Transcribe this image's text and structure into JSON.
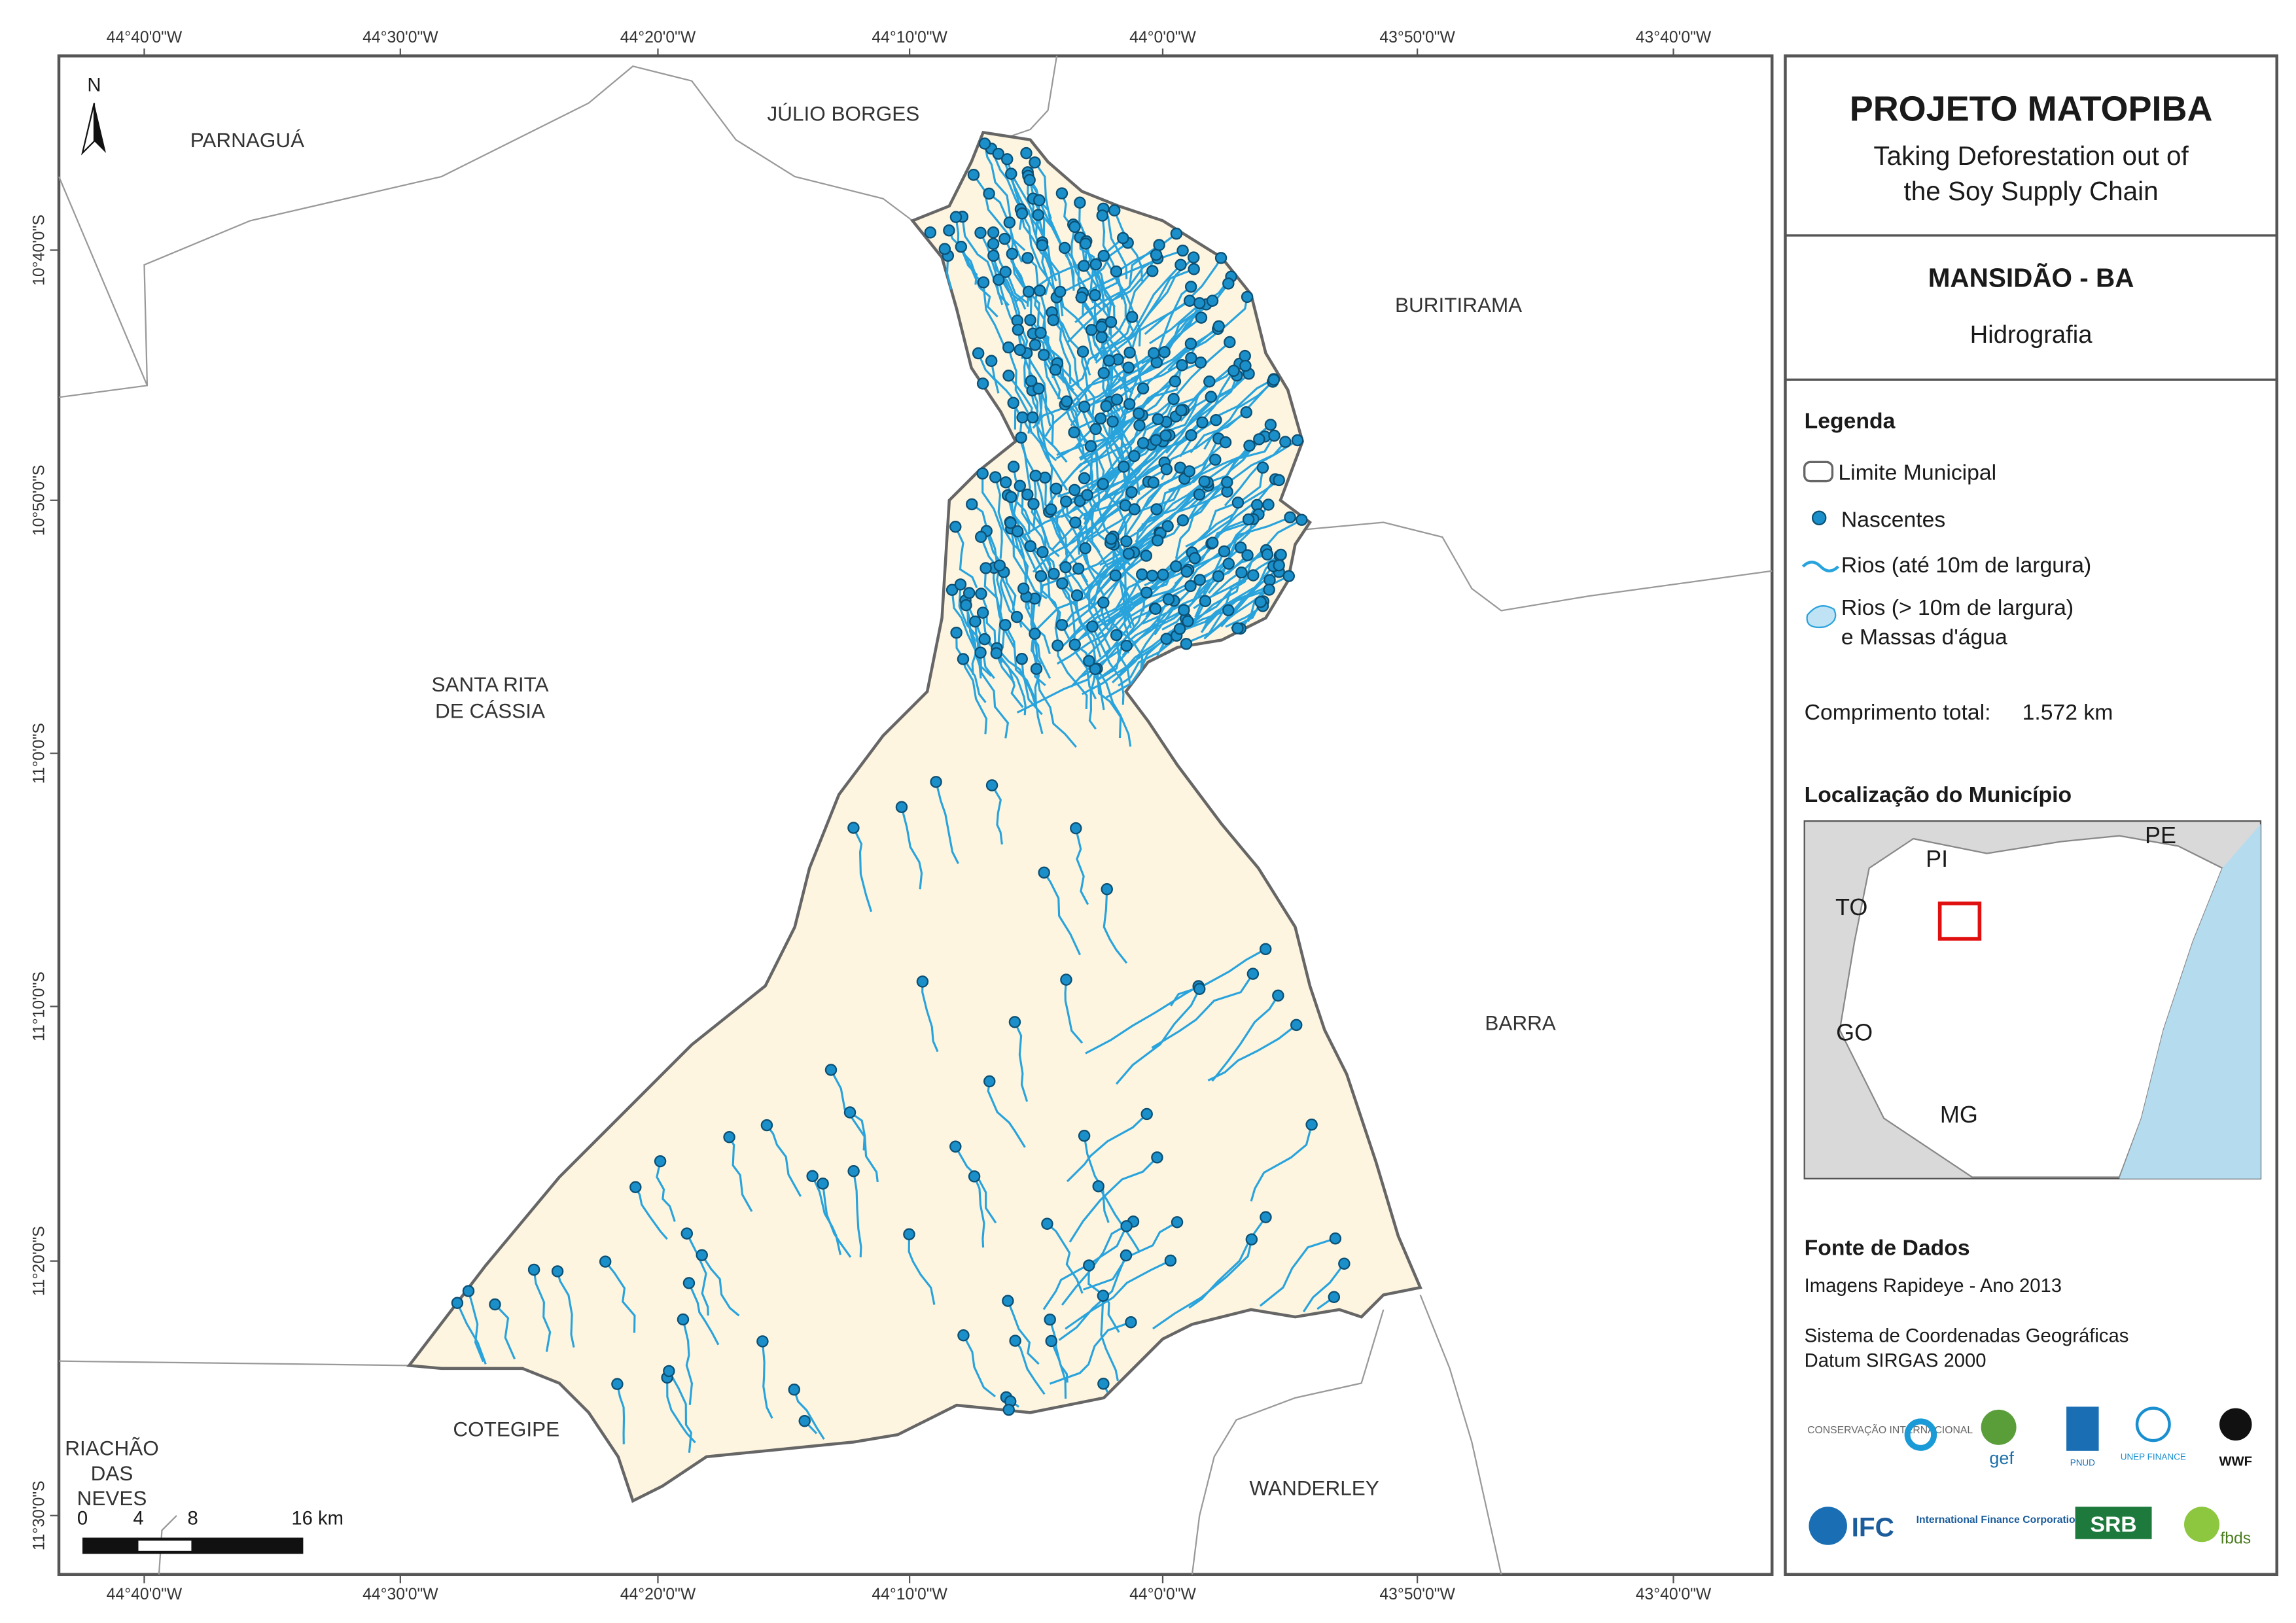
{
  "map": {
    "north": "N",
    "longitude_labels": [
      "44°40'0\"W",
      "44°30'0\"W",
      "44°20'0\"W",
      "44°10'0\"W",
      "44°0'0\"W",
      "43°50'0\"W",
      "43°40'0\"W"
    ],
    "latitude_labels": [
      "10°40'0\"S",
      "10°50'0\"S",
      "11°0'0\"S",
      "11°10'0\"S",
      "11°20'0\"S",
      "11°30'0\"S"
    ],
    "places": {
      "parnagua": "PARNAGUÁ",
      "julio_borges": "JÚLIO BORGES",
      "buritirama": "BURITIRAMA",
      "santa_rita": [
        "SANTA RITA",
        "DE CÁSSIA"
      ],
      "barra": "BARRA",
      "cotegipe": "COTEGIPE",
      "wanderley": "WANDERLEY",
      "riachao": [
        "RIACHÃO",
        "DAS",
        "NEVES"
      ]
    },
    "scale_labels": [
      "0",
      "4",
      "8",
      "16 km"
    ]
  },
  "panel": {
    "title": "PROJETO MATOPIBA",
    "subtitle": [
      "Taking Deforestation out of",
      "the Soy Supply Chain"
    ],
    "municipality": "MANSIDÃO - BA",
    "theme": "Hidrografia",
    "legend": {
      "title": "Legenda",
      "items": [
        "Limite Municipal",
        "Nascentes",
        "Rios (até 10m de largura)",
        [
          "Rios (> 10m de largura)",
          "e Massas d'água"
        ]
      ]
    },
    "total_length": {
      "label": "Comprimento total:",
      "value": "1.572 km"
    },
    "location": {
      "title": "Localização do Município",
      "states": [
        "PI",
        "PE",
        "TO",
        "GO",
        "MG"
      ]
    },
    "sources": {
      "title": "Fonte de Dados",
      "lines": [
        "Imagens Rapideye - Ano 2013",
        "Sistema de Coordenadas Geográficas",
        "Datum SIRGAS 2000"
      ]
    },
    "logos": [
      "CONSERVAÇÃO INTERNACIONAL",
      "gef",
      "PNUD",
      "UNEP FINANCE",
      "WWF",
      "IFC",
      "International Finance Corporation",
      "SRB",
      "fbds"
    ]
  }
}
